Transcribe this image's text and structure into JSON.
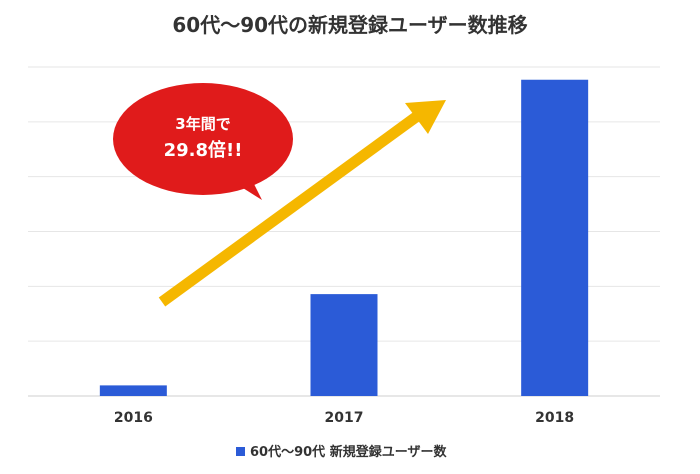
{
  "chart_data": {
    "type": "bar",
    "title": "60代〜90代の新規登録ユーザー数推移",
    "categories": [
      "2016",
      "2017",
      "2018"
    ],
    "series": [
      {
        "name": "60代〜90代 新規登録ユーザー数",
        "values": [
          1,
          9.6,
          29.8
        ],
        "color": "#2b5bd7"
      }
    ],
    "ylim": [
      0,
      31
    ],
    "grid": true,
    "legend_position": "bottom",
    "annotation": {
      "line1": "3年間で",
      "line2": "29.8倍!!",
      "bubble_color": "#e01b1b",
      "arrow_color": "#f5b700"
    }
  }
}
